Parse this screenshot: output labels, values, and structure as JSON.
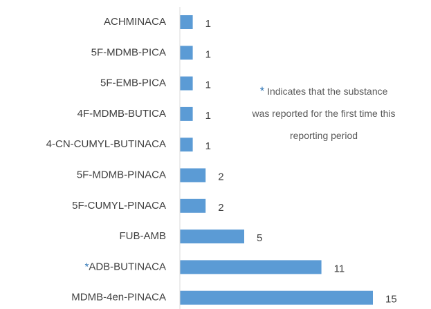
{
  "chart_data": {
    "type": "bar",
    "orientation": "horizontal",
    "categories": [
      "ACHMINACA",
      "5F-MDMB-PICA",
      "5F-EMB-PICA",
      "4F-MDMB-BUTICA",
      "4-CN-CUMYL-BUTINACA",
      "5F-MDMB-PINACA",
      "5F-CUMYL-PINACA",
      "FUB-AMB",
      "ADB-BUTINACA",
      "MDMB-4en-PINACA"
    ],
    "values": [
      1,
      1,
      1,
      1,
      1,
      2,
      2,
      5,
      11,
      15
    ],
    "color": "#5b9bd5",
    "marked": [
      false,
      false,
      false,
      false,
      false,
      false,
      false,
      false,
      true,
      false
    ],
    "annotation": {
      "marker": "*",
      "marker_color": "#2e75b6",
      "lines": [
        "Indicates that the substance",
        "was reported for the first time this",
        "reporting period"
      ]
    }
  }
}
